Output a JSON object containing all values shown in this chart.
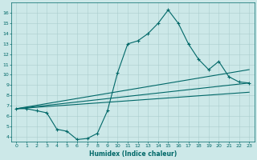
{
  "bg_color": "#cce8e8",
  "line_color": "#006868",
  "xlabel": "Humidex (Indice chaleur)",
  "xlim": [
    -0.5,
    23.5
  ],
  "ylim": [
    3.5,
    17.0
  ],
  "yticks": [
    4,
    5,
    6,
    7,
    8,
    9,
    10,
    11,
    12,
    13,
    14,
    15,
    16
  ],
  "xticks": [
    0,
    1,
    2,
    3,
    4,
    5,
    6,
    7,
    8,
    9,
    10,
    11,
    12,
    13,
    14,
    15,
    16,
    17,
    18,
    19,
    20,
    21,
    22,
    23
  ],
  "main_line_x": [
    0,
    1,
    2,
    3,
    4,
    5,
    6,
    7,
    8,
    9,
    10,
    11,
    12,
    13,
    14,
    15,
    16,
    17,
    18,
    19,
    20,
    21,
    22,
    23
  ],
  "main_line_y": [
    6.7,
    6.7,
    6.5,
    6.3,
    4.7,
    4.5,
    3.7,
    3.8,
    4.3,
    6.5,
    10.2,
    13.0,
    13.3,
    14.0,
    15.0,
    16.3,
    15.0,
    13.0,
    11.5,
    10.5,
    11.3,
    9.8,
    9.3,
    9.2
  ],
  "line2_y_end": 9.2,
  "line3_y_end": 10.5,
  "line4_y_end": 8.3,
  "start_y": 6.7,
  "start_x": 0,
  "end_x": 23
}
